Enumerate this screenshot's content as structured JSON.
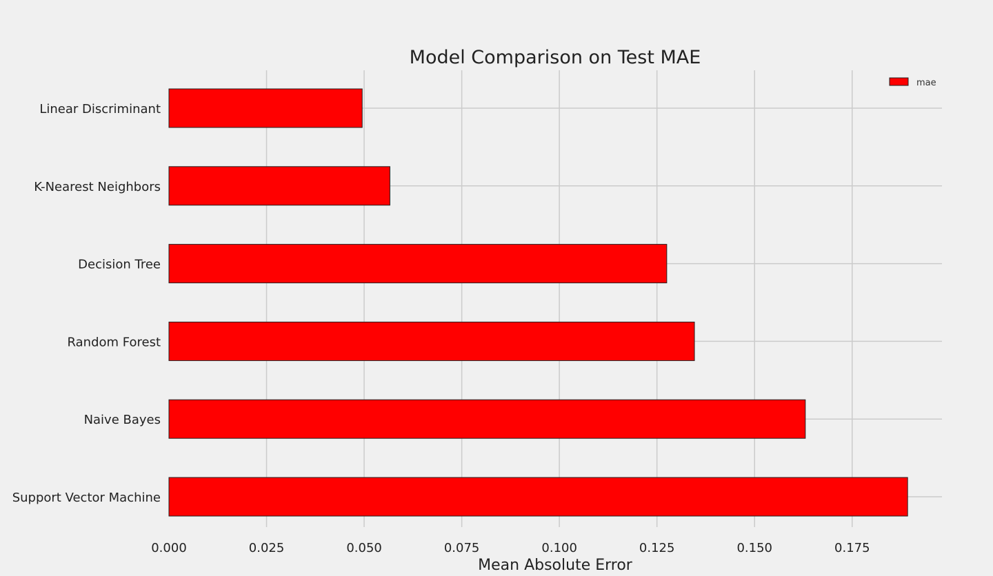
{
  "chart_data": {
    "type": "bar",
    "orientation": "horizontal",
    "title": "Model Comparison on Test MAE",
    "xlabel": "Mean Absolute Error",
    "ylabel": "",
    "xlim": [
      0,
      0.198
    ],
    "xticks": [
      "0.000",
      "0.025",
      "0.050",
      "0.075",
      "0.100",
      "0.125",
      "0.150",
      "0.175"
    ],
    "grid": true,
    "legend_position": "top-right",
    "categories": [
      "Linear Discriminant",
      "K-Nearest Neighbors",
      "Decision Tree",
      "Random Forest",
      "Naive Bayes",
      "Support Vector Machine"
    ],
    "series": [
      {
        "name": "mae",
        "color": "#ff0000",
        "values": [
          0.0495,
          0.0566,
          0.1275,
          0.1346,
          0.163,
          0.1892
        ]
      }
    ]
  }
}
